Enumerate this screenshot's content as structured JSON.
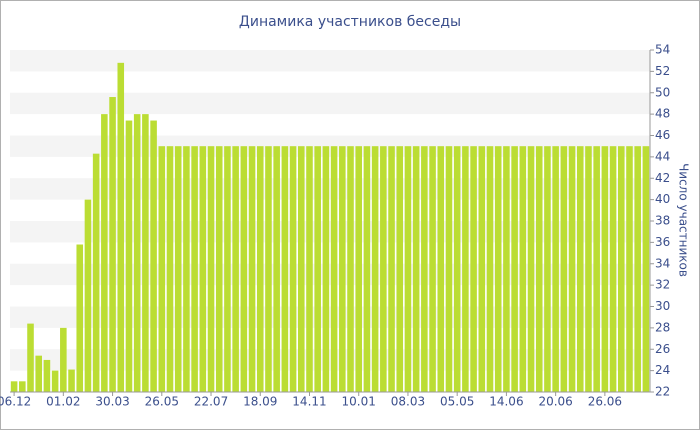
{
  "chart_data": {
    "type": "bar",
    "title": "Динамика участников беседы",
    "y_axis_label": "Число участников",
    "categories": [
      "06.12",
      null,
      null,
      null,
      null,
      null,
      "01.02",
      null,
      null,
      null,
      null,
      null,
      "30.03",
      null,
      null,
      null,
      null,
      null,
      "26.05",
      null,
      null,
      null,
      null,
      null,
      "22.07",
      null,
      null,
      null,
      null,
      null,
      "18.09",
      null,
      null,
      null,
      null,
      null,
      "14.11",
      null,
      null,
      null,
      null,
      null,
      "10.01",
      null,
      null,
      null,
      null,
      null,
      "08.03",
      null,
      null,
      null,
      null,
      null,
      "05.05",
      null,
      null,
      null,
      null,
      null,
      "14.06",
      null,
      null,
      null,
      null,
      null,
      "20.06",
      null,
      null,
      null,
      null,
      null,
      "26.06",
      null,
      null,
      null,
      null,
      null
    ],
    "values": [
      23,
      23,
      28.4,
      25.4,
      25,
      24,
      28,
      24.1,
      35.8,
      40,
      44.3,
      48,
      49.6,
      52.8,
      47.4,
      48,
      48,
      47.4,
      45,
      45,
      45,
      45,
      45,
      45,
      45,
      45,
      45,
      45,
      45,
      45,
      45,
      45,
      45,
      45,
      45,
      45,
      45,
      45,
      45,
      45,
      45,
      45,
      45,
      45,
      45,
      45,
      45,
      45,
      45,
      45,
      45,
      45,
      45,
      45,
      45,
      45,
      45,
      45,
      45,
      45,
      45,
      45,
      45,
      45,
      45,
      45,
      45,
      45,
      45,
      45,
      45,
      45,
      45,
      45,
      45,
      45,
      45,
      45
    ],
    "color": "#bbdd33",
    "ylim": [
      22,
      54
    ],
    "yticks": [
      22,
      24,
      26,
      28,
      30,
      32,
      34,
      36,
      38,
      40,
      42,
      44,
      46,
      48,
      50,
      52,
      54
    ],
    "grid": true
  }
}
